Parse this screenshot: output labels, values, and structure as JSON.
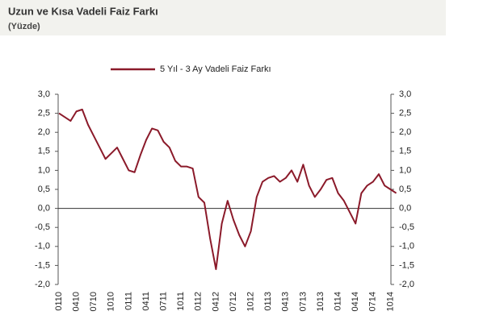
{
  "chart_data": {
    "type": "line",
    "title": "Uzun ve Kısa Vadeli Faiz Farkı",
    "subtitle": "(Yüzde)",
    "categories": [
      "0110",
      null,
      null,
      "0410",
      null,
      null,
      "0710",
      null,
      null,
      "1010",
      null,
      null,
      "0111",
      null,
      null,
      "0411",
      null,
      null,
      "0711",
      null,
      null,
      "1011",
      null,
      null,
      "0112",
      null,
      null,
      "0412",
      null,
      null,
      "0712",
      null,
      null,
      "1012",
      null,
      null,
      "0113",
      null,
      null,
      "0413",
      null,
      null,
      "0713",
      null,
      null,
      "1013",
      null,
      null,
      "0114",
      null,
      null,
      "0414",
      null,
      null,
      "0714",
      null,
      null,
      "1014",
      null
    ],
    "series": [
      {
        "name": "5 Yıl - 3 Ay Vadeli Faiz Farkı",
        "color": "#8b1a2a",
        "axis": "y",
        "values": [
          2.5,
          2.4,
          2.3,
          2.55,
          2.6,
          2.2,
          1.9,
          1.6,
          1.3,
          1.45,
          1.6,
          1.3,
          1.0,
          0.95,
          1.4,
          1.8,
          2.1,
          2.05,
          1.75,
          1.6,
          1.25,
          1.1,
          1.1,
          1.05,
          0.3,
          0.15,
          -0.8,
          -1.6,
          -0.4,
          0.2,
          -0.3,
          -0.7,
          -1.0,
          -0.6,
          0.3,
          0.7,
          0.8,
          0.85,
          0.7,
          0.8,
          1.0,
          0.7,
          1.15,
          0.6,
          0.3,
          0.5,
          0.75,
          0.8,
          0.4,
          0.2,
          -0.1,
          -0.4,
          0.4,
          0.6,
          0.7,
          0.9,
          0.6,
          0.5,
          0.4
        ]
      }
    ],
    "ylim": [
      -2,
      3
    ],
    "yticks": [
      {
        "value": 3,
        "label": "3,0"
      },
      {
        "value": 2.5,
        "label": "2,5"
      },
      {
        "value": 2,
        "label": "2,0"
      },
      {
        "value": 1.5,
        "label": "1,5"
      },
      {
        "value": 1,
        "label": "1,0"
      },
      {
        "value": 0.5,
        "label": "0,5"
      },
      {
        "value": 0,
        "label": "0,0"
      },
      {
        "value": -0.5,
        "label": "-0,5"
      },
      {
        "value": -1,
        "label": "-1,0"
      },
      {
        "value": -1.5,
        "label": "-1,5"
      },
      {
        "value": -2,
        "label": "-2,0"
      }
    ],
    "y2lim": [
      -2,
      3
    ],
    "y2ticks": [
      {
        "value": 3,
        "label": "3,0"
      },
      {
        "value": 2.5,
        "label": "2,5"
      },
      {
        "value": 2,
        "label": "2,0"
      },
      {
        "value": 1.5,
        "label": "1,5"
      },
      {
        "value": 1,
        "label": "1,0"
      },
      {
        "value": 0.5,
        "label": "0,5"
      },
      {
        "value": 0,
        "label": "0,0"
      },
      {
        "value": -0.5,
        "label": "-0,5"
      },
      {
        "value": -1,
        "label": "-1,0"
      },
      {
        "value": -1.5,
        "label": "-1,5"
      },
      {
        "value": -2,
        "label": "-2,0"
      }
    ],
    "grid": false,
    "legend": "top"
  }
}
